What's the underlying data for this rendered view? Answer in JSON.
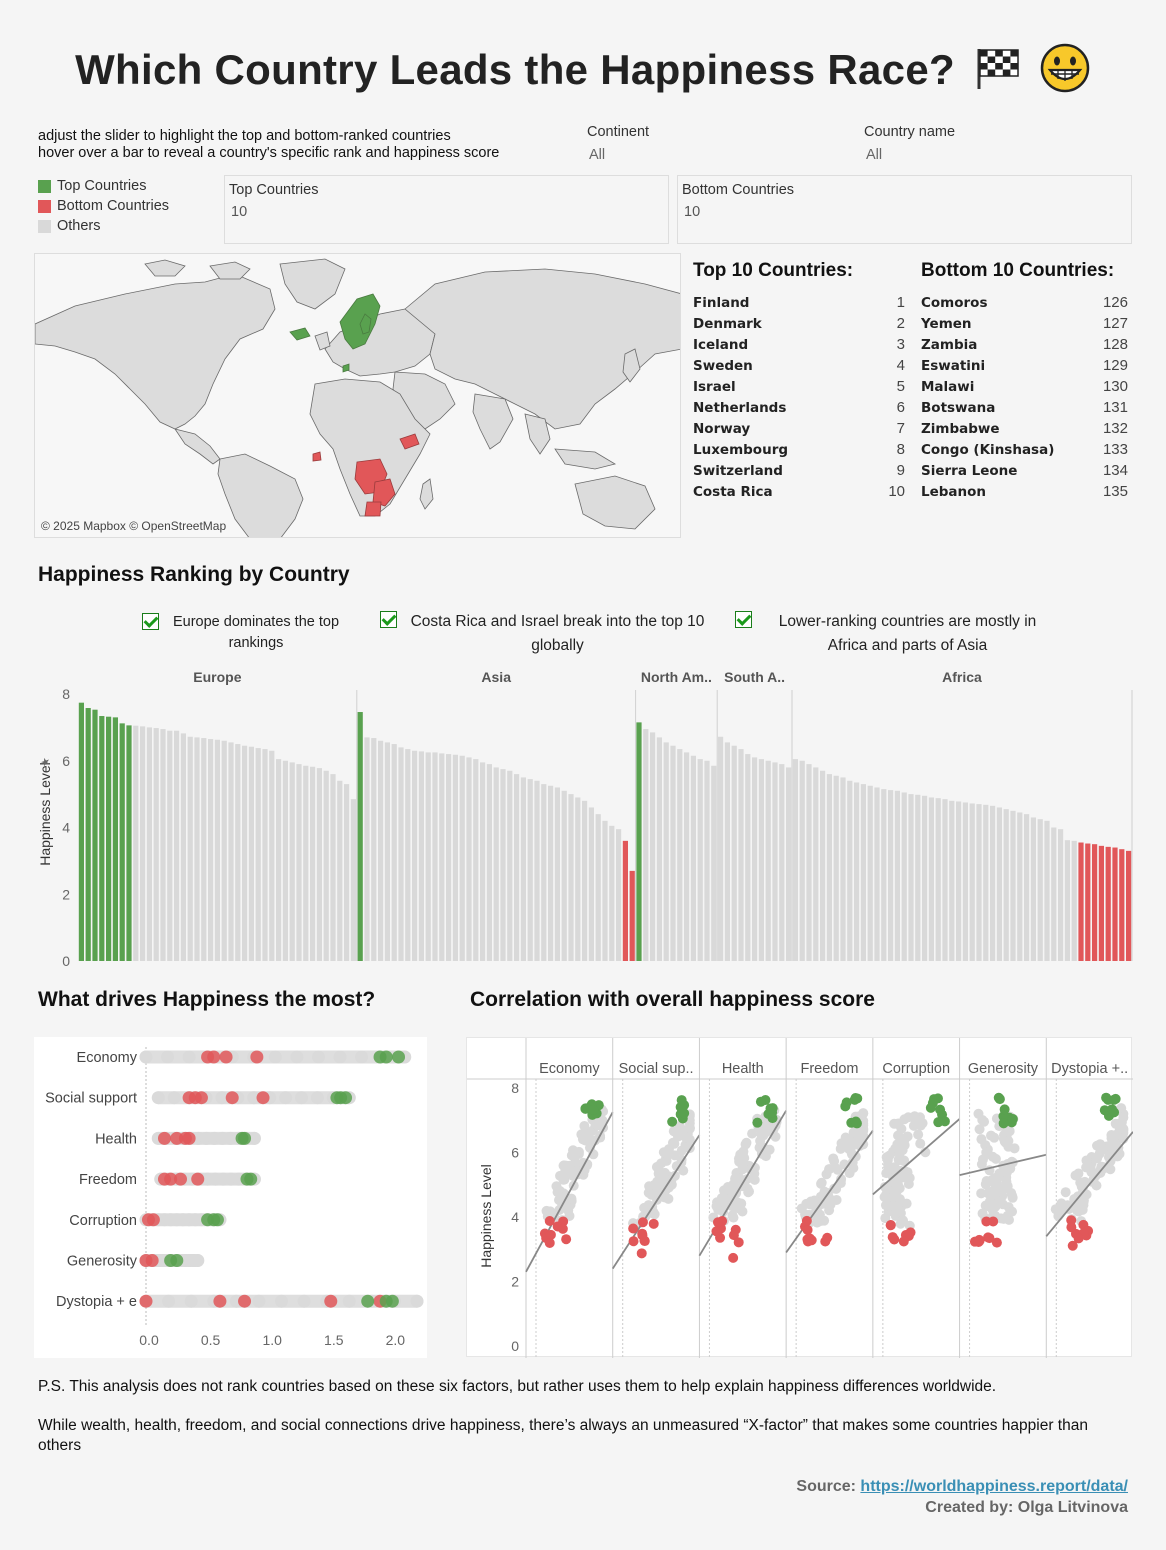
{
  "header": {
    "title": "Which Country Leads the Happiness Race?",
    "emoji_icons": [
      "checkered-flag-icon",
      "grinning-face-icon"
    ]
  },
  "instructions": {
    "line1": "adjust the slider to highlight the top and bottom-ranked countries",
    "line2": "hover over a bar to reveal a country's specific rank and happiness score"
  },
  "filters": {
    "continent": {
      "label": "Continent",
      "value": "All"
    },
    "country": {
      "label": "Country name",
      "value": "All"
    }
  },
  "legend": {
    "items": [
      {
        "label": "Top Countries",
        "color": "#59a14f"
      },
      {
        "label": "Bottom Countries",
        "color": "#e15759"
      },
      {
        "label": "Others",
        "color": "#d9d9d9"
      }
    ]
  },
  "sliders": {
    "top": {
      "label": "Top Countries",
      "value": "10"
    },
    "bottom": {
      "label": "Bottom Countries",
      "value": "10"
    }
  },
  "map": {
    "credit": "© 2025 Mapbox © OpenStreetMap"
  },
  "top_list": {
    "title": "Top 10 Countries:",
    "rows": [
      {
        "name": "Finland",
        "rank": "1"
      },
      {
        "name": "Denmark",
        "rank": "2"
      },
      {
        "name": "Iceland",
        "rank": "3"
      },
      {
        "name": "Sweden",
        "rank": "4"
      },
      {
        "name": "Israel",
        "rank": "5"
      },
      {
        "name": "Netherlands",
        "rank": "6"
      },
      {
        "name": "Norway",
        "rank": "7"
      },
      {
        "name": "Luxembourg",
        "rank": "8"
      },
      {
        "name": "Switzerland",
        "rank": "9"
      },
      {
        "name": "Costa Rica",
        "rank": "10"
      }
    ]
  },
  "bottom_list": {
    "title": "Bottom 10 Countries:",
    "rows": [
      {
        "name": "Comoros",
        "rank": "126"
      },
      {
        "name": "Yemen",
        "rank": "127"
      },
      {
        "name": "Zambia",
        "rank": "128"
      },
      {
        "name": "Eswatini",
        "rank": "129"
      },
      {
        "name": "Malawi",
        "rank": "130"
      },
      {
        "name": "Botswana",
        "rank": "131"
      },
      {
        "name": "Zimbabwe",
        "rank": "132"
      },
      {
        "name": "Congo (Kinshasa)",
        "rank": "133"
      },
      {
        "name": "Sierra Leone",
        "rank": "134"
      },
      {
        "name": "Lebanon",
        "rank": "135"
      }
    ]
  },
  "ranking": {
    "title": "Happiness Ranking by Country",
    "notes": [
      "Europe dominates the top rankings",
      "Costa Rica and Israel break into the top 10 globally",
      "Lower-ranking countries are mostly in Africa and parts of Asia"
    ]
  },
  "drivers": {
    "title": "What drives Happiness  the most?"
  },
  "correlation": {
    "title": "Correlation with overall happiness score"
  },
  "chart_data": [
    {
      "type": "bar",
      "ylabel": "Happiness Level",
      "ylim": [
        0,
        8
      ],
      "yticks": [
        "0",
        "2",
        "4",
        "6",
        "8"
      ],
      "groups": [
        {
          "name": "Europe",
          "values": [
            7.74,
            7.58,
            7.53,
            7.34,
            7.32,
            7.3,
            7.12,
            7.06,
            7.05,
            7.03,
            7.0,
            6.98,
            6.95,
            6.9,
            6.9,
            6.82,
            6.72,
            6.7,
            6.68,
            6.65,
            6.63,
            6.6,
            6.55,
            6.5,
            6.45,
            6.42,
            6.38,
            6.35,
            6.3,
            6.05,
            6.0,
            5.95,
            5.9,
            5.85,
            5.82,
            5.78,
            5.7,
            5.6,
            5.4,
            5.3,
            4.85
          ],
          "status": [
            "top",
            "top",
            "top",
            "top",
            "top",
            "top",
            "top",
            "top"
          ]
        },
        {
          "name": "Asia",
          "values": [
            7.46,
            6.7,
            6.68,
            6.6,
            6.55,
            6.5,
            6.4,
            6.35,
            6.3,
            6.28,
            6.25,
            6.25,
            6.22,
            6.2,
            6.18,
            6.15,
            6.1,
            6.05,
            5.95,
            5.9,
            5.8,
            5.75,
            5.7,
            5.6,
            5.5,
            5.45,
            5.4,
            5.3,
            5.25,
            5.2,
            5.1,
            5.0,
            4.9,
            4.8,
            4.6,
            4.4,
            4.2,
            4.05,
            3.95,
            3.6,
            2.7
          ],
          "status_top": 1,
          "status_bottom": 2
        },
        {
          "name": "North Am..",
          "values": [
            7.15,
            6.95,
            6.85,
            6.7,
            6.55,
            6.45,
            6.35,
            6.25,
            6.15,
            6.05,
            6.0,
            5.85
          ],
          "status_top": 1,
          "status_bottom": 0
        },
        {
          "name": "South A..",
          "values": [
            6.72,
            6.55,
            6.45,
            6.35,
            6.2,
            6.1,
            6.05,
            6.0,
            5.95,
            5.9,
            5.8
          ],
          "status_top": 0,
          "status_bottom": 0
        },
        {
          "name": "Africa",
          "values": [
            6.05,
            6.0,
            5.9,
            5.8,
            5.7,
            5.6,
            5.55,
            5.5,
            5.4,
            5.35,
            5.3,
            5.25,
            5.2,
            5.15,
            5.12,
            5.1,
            5.05,
            5.0,
            4.98,
            4.95,
            4.9,
            4.88,
            4.85,
            4.8,
            4.78,
            4.75,
            4.72,
            4.7,
            4.68,
            4.65,
            4.6,
            4.55,
            4.5,
            4.45,
            4.4,
            4.3,
            4.25,
            4.2,
            4.0,
            3.95,
            3.62,
            3.6,
            3.55,
            3.52,
            3.5,
            3.45,
            3.42,
            3.4,
            3.35,
            3.3
          ],
          "status_top": 0,
          "status_bottom": 8
        }
      ]
    },
    {
      "type": "scatter",
      "title": "What drives Happiness  the most?",
      "categories": [
        "Economy",
        "Social support",
        "Health",
        "Freedom",
        "Corruption",
        "Generosity",
        "Dystopia + e"
      ],
      "xlim": [
        0,
        2.1
      ],
      "xticks": [
        "0.0",
        "0.5",
        "1.0",
        "1.5",
        "2.0"
      ],
      "ranges": [
        {
          "min": 0.0,
          "max": 2.1,
          "bottom": [
            0.5,
            0.65,
            0.9,
            0.55
          ],
          "top": [
            1.95,
            1.9,
            2.05
          ]
        },
        {
          "min": 0.1,
          "max": 1.65,
          "bottom": [
            0.35,
            0.4,
            0.45,
            0.7,
            0.95
          ],
          "top": [
            1.58,
            1.62,
            1.55
          ]
        },
        {
          "min": 0.1,
          "max": 0.88,
          "bottom": [
            0.15,
            0.25,
            0.32,
            0.35
          ],
          "top": [
            0.78,
            0.8
          ]
        },
        {
          "min": 0.12,
          "max": 0.88,
          "bottom": [
            0.15,
            0.2,
            0.28,
            0.42
          ],
          "top": [
            0.82,
            0.85
          ]
        },
        {
          "min": 0.0,
          "max": 0.6,
          "bottom": [
            0.02,
            0.06
          ],
          "top": [
            0.5,
            0.55,
            0.58
          ]
        },
        {
          "min": 0.0,
          "max": 0.42,
          "bottom": [
            0.0,
            0.05
          ],
          "top": [
            0.2,
            0.25
          ]
        },
        {
          "min": 0.0,
          "max": 2.2,
          "bottom": [
            0.0,
            0.6,
            0.8,
            1.5,
            1.9
          ],
          "top": [
            1.8,
            1.95,
            2.0
          ]
        }
      ]
    },
    {
      "type": "scatter",
      "title": "Correlation with overall happiness score",
      "ylabel": "Happiness Level",
      "ylim": [
        0,
        8
      ],
      "yticks": [
        "0",
        "2",
        "4",
        "6",
        "8"
      ],
      "panels": [
        "Economy",
        "Social sup..",
        "Health",
        "Freedom",
        "Corruption",
        "Generosity",
        "Dystopia +.."
      ],
      "trend_slopes": [
        5.5,
        4.6,
        5.0,
        4.2,
        2.6,
        0.7,
        3.6
      ],
      "trend_intercepts": [
        2.3,
        2.4,
        2.8,
        2.9,
        4.7,
        5.3,
        3.4
      ]
    }
  ]
}
